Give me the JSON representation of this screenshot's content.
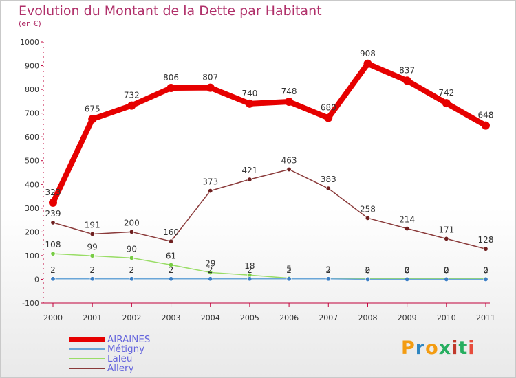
{
  "header": {
    "title": "Evolution du Montant de la Dette par Habitant",
    "subtitle": "(en €)"
  },
  "logo": {
    "text": "Proxiti",
    "colors": [
      "#f39c12",
      "#2e86c1",
      "#f39c12",
      "#27ae60",
      "#c0392b",
      "#27ae60",
      "#e74c3c"
    ]
  },
  "colors": {
    "title": "#b0306a",
    "axis": "#c0003a",
    "legend_text": "#6666dd"
  },
  "chart_data": {
    "type": "line",
    "title": "Evolution du Montant de la Dette par Habitant",
    "subtitle": "(en €)",
    "xlabel": "",
    "ylabel": "",
    "x": [
      "2000",
      "2001",
      "2002",
      "2003",
      "2004",
      "2005",
      "2006",
      "2007",
      "2008",
      "2009",
      "2010",
      "2011"
    ],
    "ylim": [
      -100,
      1000
    ],
    "yticks": [
      "-100",
      "0",
      "100",
      "200",
      "300",
      "400",
      "500",
      "600",
      "700",
      "800",
      "900",
      "1000"
    ],
    "grid": false,
    "legend_position": "bottom-left",
    "series": [
      {
        "name": "AIRAINES",
        "color": "#e60000",
        "marker": "#e60000",
        "width": 8,
        "radius": 6,
        "values": [
          323,
          675,
          732,
          806,
          807,
          740,
          748,
          680,
          908,
          837,
          742,
          648
        ],
        "labels": [
          "323",
          "675",
          "732",
          "806",
          "807",
          "740",
          "748",
          "680",
          "908",
          "837",
          "742",
          "648"
        ]
      },
      {
        "name": "Métigny",
        "color": "#6aa6d8",
        "marker": "#3c7ec4",
        "width": 1.5,
        "radius": 3.2,
        "values": [
          2,
          2,
          2,
          2,
          2,
          2,
          2,
          2,
          0,
          0,
          0,
          0
        ],
        "labels": [
          "2",
          "2",
          "2",
          "2",
          "2",
          "2",
          "2",
          "2",
          "0",
          "0",
          "0",
          "0"
        ]
      },
      {
        "name": "Laleu",
        "color": "#99dd66",
        "marker": "#77cc44",
        "width": 1.5,
        "radius": 3.2,
        "values": [
          108,
          99,
          90,
          61,
          29,
          18,
          5,
          3,
          2,
          2,
          2,
          2
        ],
        "labels": [
          "108",
          "99",
          "90",
          "61",
          "29",
          "18",
          "5",
          "3",
          "2",
          "2",
          "2",
          "2"
        ]
      },
      {
        "name": "Allery",
        "color": "#8a3a3a",
        "marker": "#6e1f1f",
        "width": 1.5,
        "radius": 3.2,
        "values": [
          239,
          191,
          200,
          160,
          373,
          421,
          463,
          383,
          258,
          214,
          171,
          128
        ],
        "labels": [
          "239",
          "191",
          "200",
          "160",
          "373",
          "421",
          "463",
          "383",
          "258",
          "214",
          "171",
          "128"
        ]
      }
    ]
  }
}
